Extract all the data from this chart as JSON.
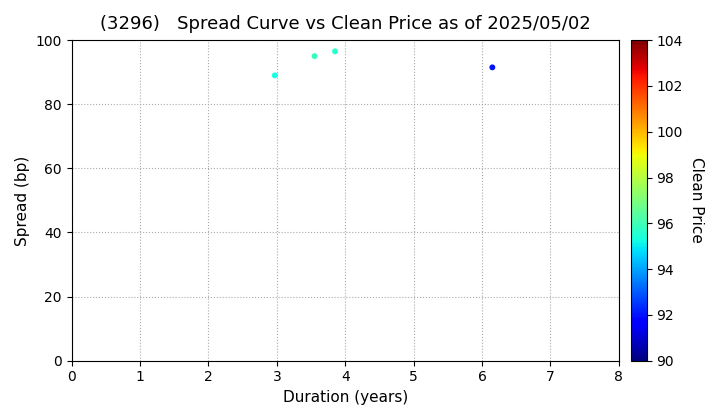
{
  "title": "(3296)   Spread Curve vs Clean Price as of 2025/05/02",
  "xlabel": "Duration (years)",
  "ylabel": "Spread (bp)",
  "colorbar_label": "Clean Price",
  "xlim": [
    0,
    8
  ],
  "ylim": [
    0,
    100
  ],
  "xticks": [
    0,
    1,
    2,
    3,
    4,
    5,
    6,
    7,
    8
  ],
  "yticks": [
    0,
    20,
    40,
    60,
    80,
    100
  ],
  "colorbar_min": 90,
  "colorbar_max": 104,
  "colorbar_ticks": [
    90,
    92,
    94,
    96,
    98,
    100,
    102,
    104
  ],
  "points": [
    {
      "duration": 2.97,
      "spread": 89.0,
      "clean_price": 95.3
    },
    {
      "duration": 3.55,
      "spread": 95.0,
      "clean_price": 95.8
    },
    {
      "duration": 3.85,
      "spread": 96.5,
      "clean_price": 95.6
    },
    {
      "duration": 6.15,
      "spread": 91.5,
      "clean_price": 92.0
    }
  ],
  "background_color": "#ffffff",
  "grid_color_dot": "#aaaaaa",
  "grid_color_dash": "#aaaaaa",
  "title_fontsize": 13,
  "axis_fontsize": 11,
  "tick_fontsize": 10,
  "marker_size": 18
}
